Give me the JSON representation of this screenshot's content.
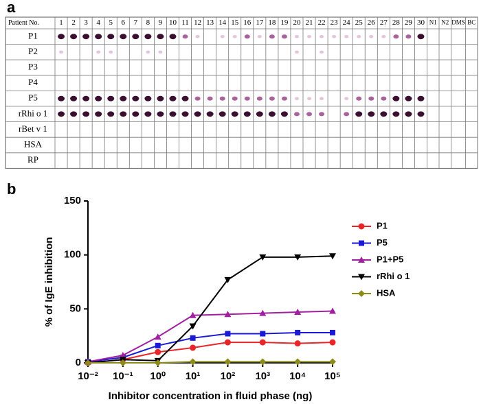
{
  "panel_labels": [
    "a",
    "b"
  ],
  "table": {
    "header": "Patient No.",
    "columns": [
      "1",
      "2",
      "3",
      "4",
      "5",
      "6",
      "7",
      "8",
      "9",
      "10",
      "11",
      "12",
      "13",
      "14",
      "15",
      "16",
      "17",
      "18",
      "19",
      "20",
      "21",
      "22",
      "23",
      "24",
      "25",
      "26",
      "27",
      "28",
      "29",
      "30",
      "N1",
      "N2",
      "DMS",
      "BC"
    ],
    "rows": [
      "P1",
      "P2",
      "P3",
      "P4",
      "P5",
      "rRhi o 1",
      "rBet v 1",
      "HSA",
      "RP"
    ]
  },
  "chart_data": {
    "type": "line",
    "x_label": "Inhibitor concentration  in fluid phase (ng)",
    "y_label": "% of IgE inhibition",
    "x": [
      0.01,
      0.1,
      1,
      10,
      100,
      1000,
      10000,
      100000
    ],
    "xlog": true,
    "xlim": [
      0.01,
      100000
    ],
    "xticks": [
      {
        "value": 0.01,
        "label": "10⁻²"
      },
      {
        "value": 0.1,
        "label": "10⁻¹"
      },
      {
        "value": 1,
        "label": "10⁰"
      },
      {
        "value": 10,
        "label": "10¹"
      },
      {
        "value": 100,
        "label": "10²"
      },
      {
        "value": 1000,
        "label": "10³"
      },
      {
        "value": 10000,
        "label": "10⁴"
      },
      {
        "value": 100000,
        "label": "10⁵"
      }
    ],
    "ylim": [
      0,
      150
    ],
    "yticks": [
      0,
      50,
      100,
      150
    ],
    "series": [
      {
        "name": "P1",
        "color": "#e8262a",
        "marker": "circle",
        "values": [
          0,
          3,
          10,
          14,
          19,
          19,
          18,
          19
        ]
      },
      {
        "name": "P5",
        "color": "#1a1ad6",
        "marker": "square",
        "values": [
          1,
          5,
          16,
          23,
          27,
          27,
          28,
          28
        ]
      },
      {
        "name": "P1+P5",
        "color": "#a020a0",
        "marker": "triangle-up",
        "values": [
          1,
          7,
          24,
          44,
          45,
          46,
          47,
          48
        ]
      },
      {
        "name": "rRhi o 1",
        "color": "#000000",
        "marker": "triangle-down",
        "values": [
          0,
          3,
          2,
          34,
          77,
          98,
          98,
          99
        ]
      },
      {
        "name": "HSA",
        "color": "#8c8c1a",
        "marker": "diamond",
        "values": [
          0,
          0,
          0,
          1,
          1,
          1,
          1,
          1
        ]
      }
    ]
  }
}
